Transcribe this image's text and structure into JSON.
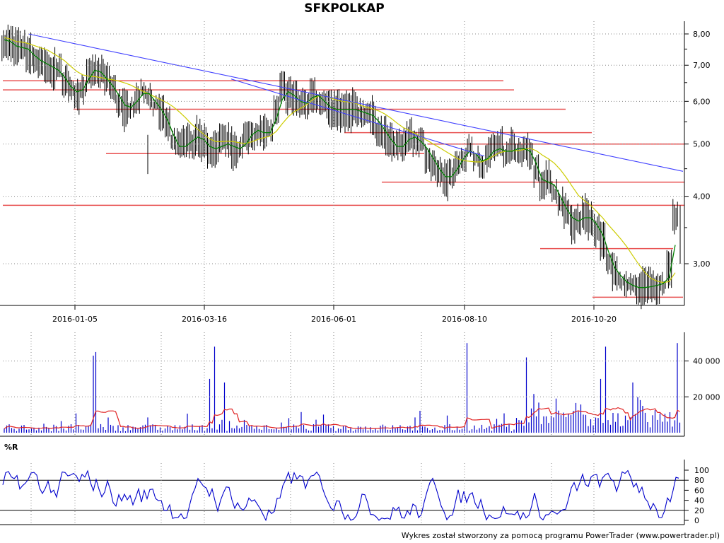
{
  "chart_data": {
    "type": "stock-chart",
    "title": "SFKPOLKAP",
    "footer": "Wykres został stworzony za pomocą programu PowerTrader (www.powertrader.pl)",
    "x_axis": {
      "date_ticks": [
        "2016-01-05",
        "2016-03-16",
        "2016-06-01",
        "2016-08-10",
        "2016-10-20"
      ]
    },
    "price_panel": {
      "y_scale": "log",
      "y_ticks": [
        "8,00",
        "7,00",
        "6,00",
        "5,00",
        "4,00",
        "3,00"
      ],
      "y_tick_values": [
        8.0,
        7.0,
        6.0,
        5.0,
        4.0,
        3.0
      ],
      "close_series": [
        7.8,
        7.7,
        7.5,
        7.6,
        7.4,
        7.2,
        7.1,
        7.0,
        6.9,
        6.8,
        6.5,
        6.3,
        6.2,
        6.4,
        6.8,
        6.9,
        6.7,
        6.5,
        6.3,
        6.0,
        5.8,
        5.9,
        6.1,
        6.3,
        6.1,
        5.9,
        5.7,
        5.4,
        5.0,
        4.9,
        5.0,
        5.1,
        5.2,
        5.0,
        4.9,
        4.9,
        5.0,
        5.0,
        4.9,
        4.9,
        5.1,
        5.3,
        5.3,
        5.2,
        5.3,
        5.8,
        6.3,
        6.2,
        6.1,
        5.9,
        6.0,
        6.2,
        6.1,
        5.9,
        5.8,
        5.8,
        5.8,
        5.8,
        5.8,
        5.7,
        5.7,
        5.6,
        5.4,
        5.2,
        5.0,
        4.9,
        5.0,
        5.2,
        5.1,
        5.0,
        4.8,
        4.6,
        4.4,
        4.3,
        4.4,
        4.6,
        4.8,
        4.9,
        4.7,
        4.6,
        4.8,
        4.9,
        4.9,
        4.8,
        4.9,
        4.9,
        4.9,
        4.8,
        4.4,
        4.2,
        4.3,
        4.1,
        3.9,
        3.7,
        3.6,
        3.6,
        3.7,
        3.6,
        3.5,
        3.3,
        3.0,
        2.9,
        2.8,
        2.75,
        2.72,
        2.7,
        2.72,
        2.72,
        2.75,
        2.76,
        2.9,
        3.6
      ],
      "horizontal_levels": [
        6.55,
        6.3,
        5.8,
        5.25,
        5.0,
        4.8,
        4.25,
        3.85,
        3.2,
        2.6
      ],
      "trendlines": [
        {
          "from": [
            "2015-12-10",
            8.0
          ],
          "to": [
            "2016-12-25",
            4.45
          ]
        },
        {
          "from": [
            "2016-04-01",
            6.6
          ],
          "to": [
            "2016-08-20",
            4.75
          ]
        }
      ],
      "moving_average_colors": {
        "short": "#008000",
        "long": "#cccc00"
      },
      "candle_color": "#000000",
      "level_color": "#e85050",
      "trendline_color": "#4040ff"
    },
    "volume_panel": {
      "y_ticks": [
        "40 000",
        "20 000"
      ],
      "y_tick_values": [
        40000,
        20000
      ],
      "bar_color": "#0000cc",
      "ma_color": "#e02020"
    },
    "williams_r_panel": {
      "label": "%R",
      "y_ticks": [
        "100",
        "80",
        "60",
        "40",
        "20",
        "0"
      ],
      "y_tick_values": [
        100,
        80,
        60,
        40,
        20,
        0
      ],
      "reference_lines": [
        80,
        20
      ],
      "line_color": "#0000cc"
    }
  }
}
